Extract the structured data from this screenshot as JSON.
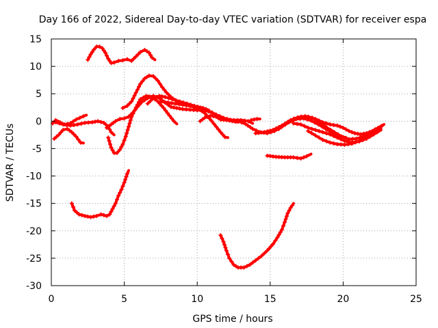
{
  "chart_data": {
    "type": "scatter",
    "title": "Day 166 of 2022, Sidereal Day-to-day VTEC variation (SDTVAR) for receiver espa",
    "xlabel": "GPS time / hours",
    "ylabel": "SDTVAR / TECUs",
    "xlim": [
      0,
      25
    ],
    "ylim": [
      -30,
      15
    ],
    "xticks": [
      0,
      5,
      10,
      15,
      20,
      25
    ],
    "yticks": [
      -30,
      -25,
      -20,
      -15,
      -10,
      -5,
      0,
      5,
      10,
      15
    ],
    "xtick_labels": [
      "0",
      "5",
      "10",
      "15",
      "20",
      "25"
    ],
    "ytick_labels": [
      "-30",
      "-25",
      "-20",
      "-15",
      "-10",
      "-5",
      "0",
      "5",
      "10",
      "15"
    ],
    "grid": true,
    "marker_color": "#ff0000",
    "series": [
      {
        "name": "arc-top-left",
        "points": [
          [
            2.5,
            11.2
          ],
          [
            2.7,
            12.2
          ],
          [
            2.9,
            13.0
          ],
          [
            3.1,
            13.6
          ],
          [
            3.3,
            13.6
          ],
          [
            3.5,
            13.3
          ],
          [
            3.7,
            12.5
          ],
          [
            3.9,
            11.4
          ],
          [
            4.1,
            10.6
          ],
          [
            4.3,
            10.7
          ],
          [
            4.6,
            11.0
          ],
          [
            4.9,
            11.1
          ],
          [
            5.2,
            11.3
          ],
          [
            5.5,
            11.0
          ],
          [
            5.8,
            11.8
          ],
          [
            6.1,
            12.6
          ],
          [
            6.4,
            13.0
          ],
          [
            6.7,
            12.5
          ],
          [
            6.9,
            11.6
          ],
          [
            7.1,
            11.2
          ]
        ]
      },
      {
        "name": "arc-left-low",
        "points": [
          [
            1.4,
            -15.0
          ],
          [
            1.6,
            -16.3
          ],
          [
            1.9,
            -17.0
          ],
          [
            2.3,
            -17.3
          ],
          [
            2.7,
            -17.5
          ],
          [
            3.1,
            -17.3
          ],
          [
            3.4,
            -17.0
          ],
          [
            3.8,
            -17.3
          ],
          [
            4.0,
            -17.0
          ],
          [
            4.2,
            -16.0
          ],
          [
            4.4,
            -15.0
          ],
          [
            4.6,
            -13.6
          ],
          [
            4.8,
            -12.5
          ],
          [
            5.0,
            -11.2
          ],
          [
            5.2,
            -9.6
          ],
          [
            5.3,
            -9.0
          ]
        ]
      },
      {
        "name": "arc-left-wave",
        "points": [
          [
            0.1,
            -0.4
          ],
          [
            0.3,
            0.2
          ],
          [
            0.6,
            -0.2
          ],
          [
            0.9,
            -0.6
          ],
          [
            1.3,
            -0.4
          ],
          [
            1.7,
            0.3
          ],
          [
            2.2,
            0.9
          ],
          [
            2.4,
            1.1
          ]
        ]
      },
      {
        "name": "arc-left-short",
        "points": [
          [
            0.2,
            -3.2
          ],
          [
            0.5,
            -2.5
          ],
          [
            0.8,
            -1.6
          ],
          [
            1.1,
            -1.4
          ],
          [
            1.4,
            -2.0
          ],
          [
            1.7,
            -2.8
          ],
          [
            2.0,
            -3.9
          ],
          [
            2.2,
            -4.0
          ]
        ]
      },
      {
        "name": "arc-left-flat",
        "points": [
          [
            0.3,
            -0.2
          ],
          [
            0.8,
            -0.6
          ],
          [
            1.3,
            -0.8
          ],
          [
            1.8,
            -0.6
          ],
          [
            2.3,
            -0.3
          ],
          [
            2.8,
            -0.2
          ],
          [
            3.2,
            0.0
          ],
          [
            3.6,
            -0.3
          ],
          [
            3.9,
            -1.0
          ],
          [
            4.1,
            -2.0
          ],
          [
            4.3,
            -2.5
          ]
        ]
      },
      {
        "name": "arc-rise-main",
        "points": [
          [
            3.9,
            -3.0
          ],
          [
            4.1,
            -4.8
          ],
          [
            4.3,
            -5.8
          ],
          [
            4.5,
            -5.8
          ],
          [
            4.7,
            -5.2
          ],
          [
            4.9,
            -4.2
          ],
          [
            5.1,
            -2.8
          ],
          [
            5.3,
            -1.0
          ],
          [
            5.5,
            0.8
          ],
          [
            5.8,
            2.5
          ],
          [
            6.1,
            4.0
          ],
          [
            6.5,
            4.6
          ],
          [
            6.9,
            4.4
          ],
          [
            7.3,
            3.6
          ],
          [
            7.7,
            2.4
          ],
          [
            8.1,
            1.0
          ],
          [
            8.4,
            0.0
          ],
          [
            8.6,
            -0.5
          ]
        ]
      },
      {
        "name": "arc-rise-second",
        "points": [
          [
            3.8,
            -1.2
          ],
          [
            4.1,
            -0.6
          ],
          [
            4.4,
            0.0
          ],
          [
            4.7,
            0.4
          ],
          [
            5.0,
            0.5
          ],
          [
            5.3,
            0.8
          ],
          [
            5.6,
            1.6
          ],
          [
            5.9,
            2.6
          ],
          [
            6.2,
            3.5
          ],
          [
            6.6,
            4.2
          ],
          [
            7.0,
            4.6
          ],
          [
            7.4,
            4.2
          ],
          [
            7.8,
            3.4
          ],
          [
            8.2,
            2.6
          ],
          [
            8.6,
            2.4
          ],
          [
            9.0,
            2.2
          ],
          [
            9.5,
            2.1
          ],
          [
            10.0,
            2.0
          ],
          [
            10.5,
            2.0
          ],
          [
            11.0,
            1.6
          ],
          [
            11.5,
            0.8
          ],
          [
            12.0,
            0.3
          ],
          [
            12.5,
            0.2
          ],
          [
            13.0,
            0.2
          ],
          [
            13.5,
            0.0
          ],
          [
            13.8,
            -0.4
          ]
        ]
      },
      {
        "name": "arc-peak",
        "points": [
          [
            4.9,
            2.4
          ],
          [
            5.2,
            2.8
          ],
          [
            5.5,
            3.6
          ],
          [
            5.8,
            5.2
          ],
          [
            6.1,
            6.8
          ],
          [
            6.4,
            7.8
          ],
          [
            6.7,
            8.3
          ],
          [
            7.0,
            8.2
          ],
          [
            7.3,
            7.4
          ],
          [
            7.6,
            6.2
          ],
          [
            7.9,
            5.2
          ],
          [
            8.2,
            4.4
          ],
          [
            8.5,
            3.8
          ],
          [
            8.8,
            3.3
          ],
          [
            9.2,
            3.0
          ],
          [
            9.6,
            2.8
          ],
          [
            10.0,
            2.6
          ],
          [
            10.4,
            2.4
          ],
          [
            10.8,
            2.0
          ]
        ]
      },
      {
        "name": "arc-mid-wide",
        "points": [
          [
            6.6,
            3.2
          ],
          [
            7.0,
            4.2
          ],
          [
            7.4,
            4.6
          ],
          [
            7.8,
            4.4
          ],
          [
            8.3,
            4.0
          ],
          [
            8.8,
            3.6
          ],
          [
            9.3,
            3.2
          ],
          [
            9.8,
            2.8
          ],
          [
            10.3,
            2.4
          ],
          [
            10.8,
            1.8
          ],
          [
            11.3,
            1.2
          ],
          [
            11.8,
            0.6
          ],
          [
            12.3,
            0.2
          ],
          [
            12.8,
            0.0
          ],
          [
            13.3,
            -0.5
          ],
          [
            13.8,
            -1.4
          ],
          [
            14.3,
            -2.0
          ],
          [
            14.8,
            -2.2
          ],
          [
            15.3,
            -1.8
          ],
          [
            15.8,
            -1.0
          ],
          [
            16.3,
            -0.2
          ],
          [
            16.8,
            0.4
          ],
          [
            17.3,
            0.5
          ],
          [
            17.8,
            0.1
          ],
          [
            18.3,
            -0.6
          ],
          [
            18.8,
            -1.4
          ],
          [
            19.3,
            -2.2
          ],
          [
            19.8,
            -2.8
          ],
          [
            20.2,
            -3.0
          ]
        ]
      },
      {
        "name": "arc-mid-dip",
        "points": [
          [
            7.5,
            3.6
          ],
          [
            8.0,
            3.4
          ],
          [
            8.5,
            3.2
          ],
          [
            9.0,
            3.0
          ],
          [
            9.5,
            2.8
          ],
          [
            10.0,
            2.4
          ],
          [
            10.5,
            1.5
          ],
          [
            11.0,
            0.0
          ],
          [
            11.3,
            -1.0
          ],
          [
            11.6,
            -2.0
          ],
          [
            11.9,
            -2.9
          ],
          [
            12.1,
            -3.0
          ]
        ]
      },
      {
        "name": "arc-mid-short",
        "points": [
          [
            10.2,
            0.0
          ],
          [
            10.5,
            0.6
          ],
          [
            10.9,
            1.0
          ],
          [
            11.3,
            0.8
          ],
          [
            11.6,
            0.3
          ],
          [
            12.0,
            0.2
          ],
          [
            12.4,
            0.0
          ],
          [
            12.8,
            -0.2
          ]
        ]
      },
      {
        "name": "arc-flat-bit",
        "points": [
          [
            13.7,
            0.2
          ],
          [
            13.9,
            0.3
          ],
          [
            14.1,
            0.4
          ],
          [
            14.3,
            0.4
          ]
        ]
      },
      {
        "name": "arc-right-a",
        "points": [
          [
            14.0,
            -2.2
          ],
          [
            14.6,
            -2.0
          ],
          [
            15.2,
            -1.6
          ],
          [
            15.8,
            -0.8
          ],
          [
            16.4,
            0.2
          ],
          [
            16.9,
            0.7
          ],
          [
            17.4,
            0.9
          ],
          [
            17.9,
            0.6
          ],
          [
            18.4,
            -0.2
          ],
          [
            18.9,
            -1.2
          ],
          [
            19.4,
            -2.0
          ],
          [
            19.9,
            -2.8
          ],
          [
            20.4,
            -3.3
          ],
          [
            20.9,
            -3.2
          ],
          [
            21.4,
            -2.8
          ],
          [
            21.9,
            -2.0
          ],
          [
            22.4,
            -1.2
          ],
          [
            22.7,
            -0.8
          ]
        ]
      },
      {
        "name": "arc-right-b",
        "points": [
          [
            15.6,
            -1.4
          ],
          [
            16.1,
            -0.4
          ],
          [
            16.6,
            0.4
          ],
          [
            17.1,
            0.8
          ],
          [
            17.6,
            0.8
          ],
          [
            18.1,
            0.4
          ],
          [
            18.6,
            -0.2
          ],
          [
            19.1,
            -0.6
          ],
          [
            19.6,
            -0.8
          ],
          [
            20.0,
            -1.2
          ],
          [
            20.4,
            -1.8
          ],
          [
            20.8,
            -2.2
          ],
          [
            21.2,
            -2.4
          ],
          [
            21.6,
            -2.2
          ],
          [
            22.0,
            -1.8
          ],
          [
            22.4,
            -1.2
          ],
          [
            22.8,
            -0.6
          ]
        ]
      },
      {
        "name": "arc-right-c",
        "points": [
          [
            16.6,
            -0.4
          ],
          [
            17.1,
            -0.6
          ],
          [
            17.6,
            -1.2
          ],
          [
            18.1,
            -1.6
          ],
          [
            18.6,
            -2.0
          ],
          [
            19.1,
            -2.4
          ],
          [
            19.6,
            -3.0
          ],
          [
            20.1,
            -3.6
          ],
          [
            20.6,
            -3.9
          ],
          [
            21.1,
            -3.7
          ],
          [
            21.6,
            -3.2
          ],
          [
            22.1,
            -2.4
          ],
          [
            22.6,
            -1.6
          ]
        ]
      },
      {
        "name": "arc-right-d",
        "points": [
          [
            17.6,
            -1.8
          ],
          [
            18.1,
            -2.6
          ],
          [
            18.6,
            -3.4
          ],
          [
            19.1,
            -3.9
          ],
          [
            19.6,
            -4.2
          ],
          [
            20.1,
            -4.3
          ],
          [
            20.6,
            -4.1
          ],
          [
            21.1,
            -3.6
          ],
          [
            21.6,
            -2.8
          ],
          [
            22.1,
            -2.0
          ],
          [
            22.6,
            -1.2
          ]
        ]
      },
      {
        "name": "arc-right-low",
        "points": [
          [
            14.8,
            -6.3
          ],
          [
            15.4,
            -6.5
          ],
          [
            16.0,
            -6.6
          ],
          [
            16.6,
            -6.6
          ],
          [
            17.1,
            -6.8
          ],
          [
            17.5,
            -6.4
          ],
          [
            17.8,
            -6.0
          ]
        ]
      },
      {
        "name": "arc-bottom-u",
        "points": [
          [
            11.6,
            -20.8
          ],
          [
            11.8,
            -22.0
          ],
          [
            12.0,
            -23.6
          ],
          [
            12.2,
            -25.0
          ],
          [
            12.5,
            -26.2
          ],
          [
            12.8,
            -26.7
          ],
          [
            13.2,
            -26.7
          ],
          [
            13.6,
            -26.2
          ],
          [
            14.0,
            -25.4
          ],
          [
            14.4,
            -24.6
          ],
          [
            14.8,
            -23.6
          ],
          [
            15.2,
            -22.4
          ],
          [
            15.5,
            -21.2
          ],
          [
            15.8,
            -19.8
          ],
          [
            16.0,
            -18.4
          ],
          [
            16.2,
            -16.8
          ],
          [
            16.4,
            -15.8
          ],
          [
            16.6,
            -15.0
          ]
        ]
      }
    ]
  }
}
